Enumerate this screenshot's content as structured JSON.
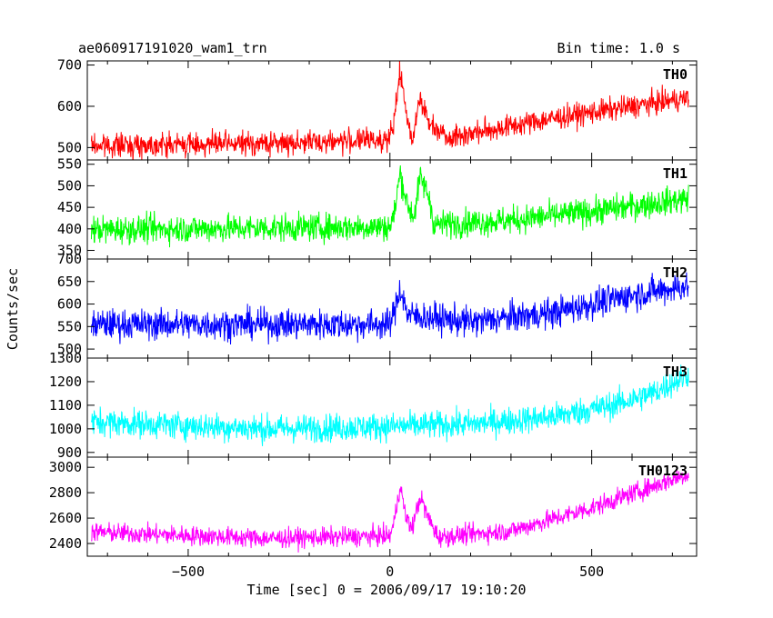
{
  "header": {
    "left": "ae060917191020_wam1_trn",
    "right": "Bin time: 1.0 s"
  },
  "axes": {
    "ylabel": "Counts/sec",
    "xlabel": "Time [sec] 0 = 2006/09/17 19:10:20"
  },
  "chart_data": {
    "type": "line",
    "x_axis": {
      "range": [
        -750,
        760
      ],
      "ticks": [
        -500,
        0,
        500
      ],
      "tick_labels": [
        "−500",
        "0",
        "500"
      ],
      "bin_time_s": 1.0
    },
    "grid": false,
    "panels": [
      {
        "name": "TH0",
        "color": "#ff0000",
        "ylim": [
          470,
          710
        ],
        "yticks": [
          500,
          600,
          700
        ],
        "anchors": [
          [
            -740,
            505
          ],
          [
            -300,
            510
          ],
          [
            0,
            520
          ],
          [
            10,
            560
          ],
          [
            25,
            690
          ],
          [
            40,
            580
          ],
          [
            55,
            520
          ],
          [
            75,
            625
          ],
          [
            95,
            560
          ],
          [
            150,
            525
          ],
          [
            400,
            570
          ],
          [
            600,
            600
          ],
          [
            740,
            620
          ]
        ],
        "noise": 20
      },
      {
        "name": "TH1",
        "color": "#00ff00",
        "ylim": [
          330,
          560
        ],
        "yticks": [
          350,
          400,
          450,
          500,
          550
        ],
        "anchors": [
          [
            -740,
            398
          ],
          [
            0,
            405
          ],
          [
            10,
            430
          ],
          [
            25,
            530
          ],
          [
            45,
            450
          ],
          [
            60,
            430
          ],
          [
            75,
            520
          ],
          [
            95,
            480
          ],
          [
            110,
            410
          ],
          [
            300,
            420
          ],
          [
            500,
            440
          ],
          [
            740,
            470
          ]
        ],
        "noise": 23
      },
      {
        "name": "TH2",
        "color": "#0000ff",
        "ylim": [
          480,
          700
        ],
        "yticks": [
          500,
          550,
          600,
          650,
          700
        ],
        "anchors": [
          [
            -740,
            555
          ],
          [
            0,
            555
          ],
          [
            10,
            580
          ],
          [
            25,
            635
          ],
          [
            45,
            575
          ],
          [
            200,
            560
          ],
          [
            400,
            580
          ],
          [
            600,
            620
          ],
          [
            740,
            640
          ]
        ],
        "noise": 24
      },
      {
        "name": "TH3",
        "color": "#00ffff",
        "ylim": [
          880,
          1300
        ],
        "yticks": [
          900,
          1000,
          1100,
          1200,
          1300
        ],
        "anchors": [
          [
            -740,
            1030
          ],
          [
            -300,
            1000
          ],
          [
            0,
            1010
          ],
          [
            200,
            1020
          ],
          [
            400,
            1050
          ],
          [
            550,
            1100
          ],
          [
            650,
            1150
          ],
          [
            740,
            1230
          ]
        ],
        "noise": 42
      },
      {
        "name": "TH0123",
        "color": "#ff00ff",
        "ylim": [
          2300,
          3080
        ],
        "yticks": [
          2400,
          2600,
          2800,
          3000
        ],
        "anchors": [
          [
            -740,
            2490
          ],
          [
            -300,
            2440
          ],
          [
            0,
            2460
          ],
          [
            10,
            2560
          ],
          [
            25,
            2860
          ],
          [
            40,
            2600
          ],
          [
            55,
            2520
          ],
          [
            75,
            2770
          ],
          [
            95,
            2600
          ],
          [
            120,
            2450
          ],
          [
            300,
            2500
          ],
          [
            500,
            2680
          ],
          [
            740,
            2950
          ]
        ],
        "noise": 55
      }
    ]
  }
}
